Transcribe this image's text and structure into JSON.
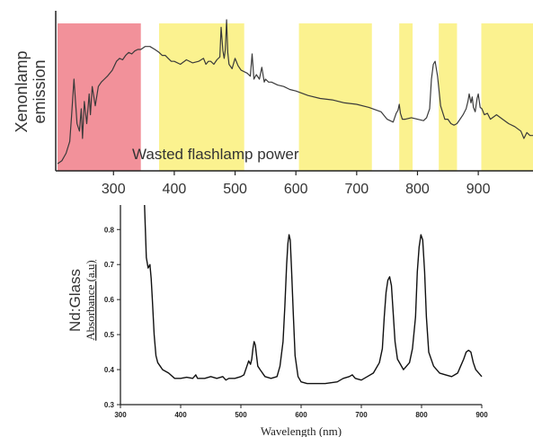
{
  "chart_data": [
    {
      "type": "line",
      "ylabel_line1": "Xenonlamp",
      "ylabel_line2": "emission",
      "annotation": "Wasted flashlamp power",
      "xlim": [
        205,
        990
      ],
      "x_ticks": [
        "300",
        "400",
        "500",
        "600",
        "700",
        "800",
        "900"
      ],
      "tick_values": [
        300,
        400,
        500,
        600,
        700,
        800,
        900
      ],
      "ylim": [
        0,
        1
      ],
      "colors": {
        "line": "#3a3a3a",
        "uv_band": "#f2919a",
        "bands": "#fbf28f",
        "axis": "#222222"
      },
      "bands": [
        {
          "start": 208,
          "end": 345,
          "kind": "uv"
        },
        {
          "start": 375,
          "end": 515,
          "kind": "absorption"
        },
        {
          "start": 605,
          "end": 725,
          "kind": "absorption"
        },
        {
          "start": 770,
          "end": 792,
          "kind": "absorption"
        },
        {
          "start": 835,
          "end": 865,
          "kind": "absorption"
        },
        {
          "start": 905,
          "end": 990,
          "kind": "absorption"
        }
      ],
      "series": [
        {
          "x": [
            208,
            215,
            222,
            228,
            231,
            235,
            240,
            244,
            247,
            249,
            252,
            256,
            260,
            262,
            265,
            270,
            275,
            280,
            285,
            290,
            298,
            305,
            310,
            315,
            320,
            325,
            330,
            335,
            340,
            345,
            352,
            360,
            368,
            375,
            380,
            385,
            390,
            395,
            400,
            410,
            420,
            430,
            440,
            448,
            452,
            456,
            460,
            465,
            470,
            475,
            477,
            480,
            482,
            484,
            486,
            488,
            490,
            495,
            500,
            505,
            510,
            520,
            525,
            528,
            531,
            535,
            540,
            544,
            548,
            550,
            555,
            560,
            570,
            580,
            590,
            600,
            620,
            640,
            660,
            680,
            700,
            720,
            740,
            750,
            760,
            765,
            768,
            770,
            772,
            775,
            780,
            790,
            800,
            810,
            815,
            820,
            823,
            826,
            829,
            833,
            838,
            845,
            850,
            855,
            860,
            865,
            870,
            875,
            880,
            883,
            885,
            888,
            890,
            892,
            895,
            898,
            900,
            903,
            906,
            910,
            915,
            920,
            930,
            940,
            950,
            960,
            970,
            975,
            980,
            985,
            990
          ],
          "y": [
            0.03,
            0.05,
            0.1,
            0.18,
            0.35,
            0.6,
            0.3,
            0.25,
            0.4,
            0.2,
            0.45,
            0.3,
            0.5,
            0.36,
            0.55,
            0.42,
            0.55,
            0.58,
            0.6,
            0.62,
            0.66,
            0.72,
            0.74,
            0.73,
            0.76,
            0.78,
            0.77,
            0.79,
            0.8,
            0.8,
            0.82,
            0.82,
            0.8,
            0.78,
            0.76,
            0.76,
            0.74,
            0.72,
            0.72,
            0.7,
            0.73,
            0.71,
            0.72,
            0.74,
            0.7,
            0.72,
            0.72,
            0.7,
            0.73,
            0.75,
            0.95,
            0.79,
            0.74,
            0.8,
            1.0,
            0.78,
            0.7,
            0.67,
            0.74,
            0.69,
            0.66,
            0.64,
            0.62,
            0.77,
            0.6,
            0.63,
            0.6,
            0.68,
            0.58,
            0.6,
            0.58,
            0.58,
            0.56,
            0.55,
            0.53,
            0.52,
            0.49,
            0.47,
            0.46,
            0.44,
            0.43,
            0.41,
            0.38,
            0.33,
            0.31,
            0.37,
            0.39,
            0.43,
            0.37,
            0.33,
            0.33,
            0.34,
            0.33,
            0.32,
            0.34,
            0.4,
            0.6,
            0.7,
            0.72,
            0.62,
            0.42,
            0.33,
            0.33,
            0.3,
            0.29,
            0.3,
            0.33,
            0.36,
            0.4,
            0.45,
            0.5,
            0.44,
            0.48,
            0.41,
            0.38,
            0.47,
            0.5,
            0.41,
            0.4,
            0.36,
            0.37,
            0.33,
            0.36,
            0.33,
            0.3,
            0.28,
            0.25,
            0.2,
            0.24,
            0.22,
            0.22
          ]
        }
      ]
    },
    {
      "type": "line",
      "ylabel_line1": "Nd:Glass",
      "ylabel_line2": "Absorbance (a.u)",
      "xlabel": "Wavelength (nm)",
      "xlim": [
        300,
        900
      ],
      "ylim": [
        0.3,
        0.87
      ],
      "x_ticks": [
        "300",
        "400",
        "500",
        "600",
        "700",
        "800",
        "900"
      ],
      "x_tick_values": [
        300,
        400,
        500,
        600,
        700,
        800,
        900
      ],
      "y_ticks": [
        "0.3",
        "0.4",
        "0.5",
        "0.6",
        "0.7",
        "0.8"
      ],
      "y_tick_values": [
        0.3,
        0.4,
        0.5,
        0.6,
        0.7,
        0.8
      ],
      "colors": {
        "line": "#111111",
        "axis": "#222222"
      },
      "series": [
        {
          "x": [
            340,
            343,
            346,
            349,
            351,
            353,
            356,
            359,
            362,
            366,
            370,
            380,
            390,
            400,
            410,
            420,
            425,
            428,
            432,
            440,
            450,
            460,
            470,
            475,
            480,
            490,
            500,
            505,
            510,
            513,
            516,
            518,
            520,
            522,
            524,
            526,
            528,
            532,
            540,
            550,
            560,
            565,
            570,
            573,
            576,
            578,
            580,
            582,
            584,
            587,
            590,
            595,
            600,
            610,
            620,
            640,
            660,
            670,
            680,
            685,
            690,
            700,
            710,
            720,
            730,
            735,
            738,
            741,
            744,
            747,
            750,
            753,
            756,
            760,
            770,
            780,
            785,
            790,
            793,
            796,
            799,
            802,
            805,
            808,
            812,
            820,
            830,
            840,
            850,
            860,
            865,
            870,
            874,
            878,
            882,
            886,
            890,
            900
          ],
          "y": [
            0.87,
            0.72,
            0.69,
            0.7,
            0.66,
            0.6,
            0.5,
            0.44,
            0.42,
            0.41,
            0.4,
            0.39,
            0.375,
            0.375,
            0.378,
            0.375,
            0.385,
            0.375,
            0.375,
            0.375,
            0.38,
            0.375,
            0.38,
            0.37,
            0.375,
            0.375,
            0.38,
            0.385,
            0.41,
            0.425,
            0.415,
            0.43,
            0.46,
            0.48,
            0.47,
            0.44,
            0.41,
            0.4,
            0.38,
            0.375,
            0.38,
            0.41,
            0.48,
            0.58,
            0.7,
            0.76,
            0.785,
            0.77,
            0.69,
            0.56,
            0.44,
            0.38,
            0.365,
            0.36,
            0.36,
            0.36,
            0.365,
            0.375,
            0.38,
            0.385,
            0.375,
            0.37,
            0.38,
            0.39,
            0.42,
            0.46,
            0.55,
            0.62,
            0.655,
            0.665,
            0.64,
            0.56,
            0.48,
            0.43,
            0.4,
            0.42,
            0.46,
            0.55,
            0.68,
            0.75,
            0.785,
            0.77,
            0.68,
            0.55,
            0.45,
            0.41,
            0.39,
            0.385,
            0.38,
            0.39,
            0.41,
            0.43,
            0.45,
            0.455,
            0.45,
            0.42,
            0.4,
            0.38
          ]
        }
      ]
    }
  ]
}
